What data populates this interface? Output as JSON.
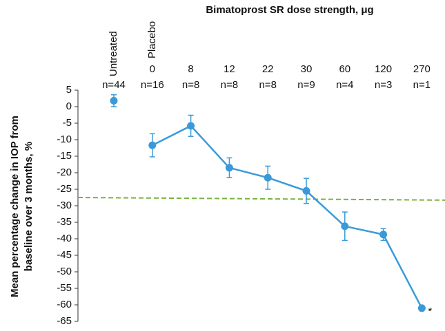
{
  "chart_data": {
    "type": "line",
    "title": "Bimatoprost SR dose strength, μg",
    "ylabel": [
      "Mean percentage change in IOP from",
      "baseline over 3 months, %"
    ],
    "rotated_labels": [
      "Untreated",
      "Placebo"
    ],
    "categories": [
      null,
      "0",
      "8",
      "12",
      "22",
      "30",
      "60",
      "120",
      "270"
    ],
    "n_labels": [
      "n=44",
      "n=16",
      "n=8",
      "n=8",
      "n=8",
      "n=9",
      "n=4",
      "n=3",
      "n=1"
    ],
    "series": [
      {
        "color": "#3a9ad9",
        "values": [
          1.8,
          null,
          null,
          null,
          null,
          null,
          null,
          null,
          null
        ],
        "errors": [
          1.8,
          null,
          null,
          null,
          null,
          null,
          null,
          null,
          null
        ]
      },
      {
        "color": "#3a9ad9",
        "values": [
          null,
          -11.7,
          -5.8,
          -18.5,
          -21.5,
          -25.5,
          -36.2,
          -38.7,
          -61
        ],
        "errors": [
          null,
          3.5,
          3.2,
          3,
          3.5,
          3.8,
          4.3,
          1.8,
          null
        ]
      }
    ],
    "reference_line": {
      "y_start": -27.5,
      "y_end": -28.3,
      "color": "#77b33c"
    },
    "annotation": "*",
    "ylim": [
      -65,
      5
    ],
    "yticks": [
      5,
      0,
      -5,
      -10,
      -15,
      -20,
      -25,
      -30,
      -35,
      -40,
      -45,
      -50,
      -55,
      -60,
      -65
    ]
  }
}
